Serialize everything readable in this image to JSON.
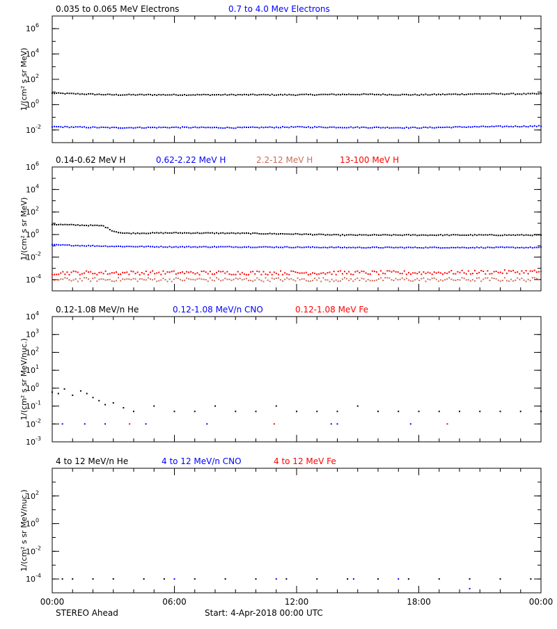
{
  "colors": {
    "black": "#000000",
    "blue": "#0000ff",
    "salmon": "#c86e5a",
    "red": "#ff0000"
  },
  "footer": {
    "left_label": "STEREO Ahead",
    "start_label": "Start:  4-Apr-2018 00:00 UTC"
  },
  "x_ticks": [
    "00:00",
    "06:00",
    "12:00",
    "18:00",
    "00:00"
  ],
  "chart_data": [
    {
      "type": "scatter",
      "scale": "log",
      "ylabel": "1/(cm² s sr MeV)",
      "ylim_log10": [
        -3,
        7
      ],
      "y_ticks": [
        {
          "exp": -2,
          "label": "10",
          "sup": "-2"
        },
        {
          "exp": 0,
          "label": "10",
          "sup": "0"
        },
        {
          "exp": 2,
          "label": "10",
          "sup": "2"
        },
        {
          "exp": 4,
          "label": "10",
          "sup": "4"
        },
        {
          "exp": 6,
          "label": "10",
          "sup": "6"
        }
      ],
      "legend": [
        "0.035 to 0.065 MeV Electrons",
        "0.7 to 4.0 Mev Electrons"
      ],
      "series": [
        {
          "name": "0.035 to 0.065 MeV Electrons",
          "color": "black",
          "mode": "band",
          "points": [
            [
              0,
              8
            ],
            [
              3,
              6
            ],
            [
              6,
              6
            ],
            [
              9,
              6
            ],
            [
              12,
              6
            ],
            [
              15,
              6.5
            ],
            [
              18,
              6
            ],
            [
              21,
              7
            ],
            [
              24,
              7
            ]
          ]
        },
        {
          "name": "0.7 to 4.0 Mev Electrons",
          "color": "blue",
          "mode": "band",
          "points": [
            [
              0,
              0.018
            ],
            [
              3,
              0.015
            ],
            [
              6,
              0.016
            ],
            [
              9,
              0.015
            ],
            [
              12,
              0.017
            ],
            [
              15,
              0.016
            ],
            [
              18,
              0.015
            ],
            [
              21,
              0.018
            ],
            [
              24,
              0.02
            ]
          ]
        }
      ]
    },
    {
      "type": "scatter",
      "scale": "log",
      "ylabel": "1/(cm² s sr MeV)",
      "ylim_log10": [
        -5,
        6
      ],
      "y_ticks": [
        {
          "exp": -4,
          "label": "10",
          "sup": "-4"
        },
        {
          "exp": -2,
          "label": "10",
          "sup": "-2"
        },
        {
          "exp": 0,
          "label": "10",
          "sup": "0"
        },
        {
          "exp": 2,
          "label": "10",
          "sup": "2"
        },
        {
          "exp": 4,
          "label": "10",
          "sup": "4"
        },
        {
          "exp": 6,
          "label": "10",
          "sup": "6"
        }
      ],
      "legend": [
        "0.14-0.62 MeV H",
        "0.62-2.22 MeV H",
        "2.2-12 MeV H",
        "13-100 MeV H"
      ],
      "series": [
        {
          "name": "0.14-0.62 MeV H",
          "color": "black",
          "mode": "band",
          "points": [
            [
              0,
              8
            ],
            [
              2.5,
              6
            ],
            [
              3,
              2
            ],
            [
              3.5,
              1.3
            ],
            [
              6,
              1.4
            ],
            [
              9,
              1.3
            ],
            [
              12,
              1.1
            ],
            [
              14,
              0.9
            ],
            [
              18,
              0.9
            ],
            [
              24,
              0.9
            ]
          ]
        },
        {
          "name": "0.62-2.22 MeV H",
          "color": "blue",
          "mode": "band",
          "points": [
            [
              0,
              0.12
            ],
            [
              3,
              0.09
            ],
            [
              6,
              0.08
            ],
            [
              9,
              0.08
            ],
            [
              12,
              0.075
            ],
            [
              15,
              0.07
            ],
            [
              18,
              0.07
            ],
            [
              24,
              0.07
            ]
          ]
        },
        {
          "name": "2.2-12 MeV H",
          "color": "salmon",
          "mode": "scatter",
          "points": [
            [
              0,
              0.0001
            ],
            [
              6,
              0.0001
            ],
            [
              12,
              0.0001
            ],
            [
              18,
              0.0001
            ],
            [
              24,
              0.0001
            ]
          ]
        },
        {
          "name": "13-100 MeV H",
          "color": "red",
          "mode": "scatter",
          "points": [
            [
              0,
              0.0004
            ],
            [
              6,
              0.0004
            ],
            [
              12,
              0.0004
            ],
            [
              18,
              0.0004
            ],
            [
              24,
              0.0005
            ]
          ]
        }
      ]
    },
    {
      "type": "scatter",
      "scale": "log",
      "ylabel": "1/(cm² s sr MeV/nuc.)",
      "ylim_log10": [
        -3,
        4
      ],
      "y_ticks": [
        {
          "exp": -3,
          "label": "10",
          "sup": "-3"
        },
        {
          "exp": -2,
          "label": "10",
          "sup": "-2"
        },
        {
          "exp": -1,
          "label": "10",
          "sup": "-1"
        },
        {
          "exp": 0,
          "label": "10",
          "sup": "0"
        },
        {
          "exp": 1,
          "label": "10",
          "sup": "1"
        },
        {
          "exp": 2,
          "label": "10",
          "sup": "2"
        },
        {
          "exp": 3,
          "label": "10",
          "sup": "3"
        },
        {
          "exp": 4,
          "label": "10",
          "sup": "4"
        }
      ],
      "legend": [
        "0.12-1.08 MeV/n He",
        "0.12-1.08 MeV/n CNO",
        "0.12-1.08 MeV Fe"
      ],
      "series": [
        {
          "name": "0.12-1.08 MeV/n He",
          "color": "black",
          "mode": "sparse",
          "points": [
            [
              0,
              0.6
            ],
            [
              0.3,
              0.5
            ],
            [
              0.6,
              0.9
            ],
            [
              1.0,
              0.4
            ],
            [
              1.4,
              0.7
            ],
            [
              1.7,
              0.5
            ],
            [
              2.0,
              0.3
            ],
            [
              2.3,
              0.2
            ],
            [
              2.6,
              0.12
            ],
            [
              3.0,
              0.15
            ],
            [
              3.5,
              0.08
            ],
            [
              4.0,
              0.05
            ],
            [
              5.0,
              0.1
            ],
            [
              6.0,
              0.05
            ],
            [
              7.0,
              0.05
            ],
            [
              8.0,
              0.1
            ],
            [
              9.0,
              0.05
            ],
            [
              10.0,
              0.05
            ],
            [
              11.0,
              0.1
            ],
            [
              12.0,
              0.05
            ],
            [
              13.0,
              0.05
            ],
            [
              14.0,
              0.05
            ],
            [
              15.0,
              0.1
            ],
            [
              16.0,
              0.05
            ],
            [
              17.0,
              0.05
            ],
            [
              18.0,
              0.05
            ],
            [
              19.0,
              0.05
            ],
            [
              20.0,
              0.05
            ],
            [
              21.0,
              0.05
            ],
            [
              22.0,
              0.05
            ],
            [
              23.0,
              0.05
            ],
            [
              24.0,
              0.05
            ]
          ]
        },
        {
          "name": "0.12-1.08 MeV/n CNO",
          "color": "blue",
          "mode": "sparse",
          "points": [
            [
              0.5,
              0.01
            ],
            [
              1.6,
              0.01
            ],
            [
              2.6,
              0.01
            ],
            [
              4.6,
              0.01
            ],
            [
              7.6,
              0.01
            ],
            [
              13.7,
              0.01
            ],
            [
              14.0,
              0.01
            ],
            [
              17.6,
              0.01
            ]
          ]
        },
        {
          "name": "0.12-1.08 MeV Fe",
          "color": "red",
          "mode": "sparse",
          "points": [
            [
              3.8,
              0.01
            ],
            [
              10.9,
              0.01
            ],
            [
              19.4,
              0.01
            ]
          ]
        }
      ]
    },
    {
      "type": "scatter",
      "scale": "log",
      "ylabel": "1/(cm² s sr MeV/nuc.)",
      "ylim_log10": [
        -5,
        4
      ],
      "y_ticks": [
        {
          "exp": -4,
          "label": "10",
          "sup": "-4"
        },
        {
          "exp": -2,
          "label": "10",
          "sup": "-2"
        },
        {
          "exp": 0,
          "label": "10",
          "sup": "0"
        },
        {
          "exp": 2,
          "label": "10",
          "sup": "2"
        }
      ],
      "legend": [
        "4 to 12 MeV/n He",
        "4 to 12 MeV/n CNO",
        "4 to 12 MeV Fe"
      ],
      "series": [
        {
          "name": "4 to 12 MeV/n He",
          "color": "black",
          "mode": "sparse",
          "points": [
            [
              0.5,
              0.0001
            ],
            [
              1.0,
              0.0001
            ],
            [
              2.0,
              0.0001
            ],
            [
              3.0,
              0.0001
            ],
            [
              4.5,
              0.0001
            ],
            [
              5.5,
              0.0001
            ],
            [
              7.0,
              0.0001
            ],
            [
              8.5,
              0.0001
            ],
            [
              10.0,
              0.0001
            ],
            [
              11.5,
              0.0001
            ],
            [
              13.0,
              0.0001
            ],
            [
              14.5,
              0.0001
            ],
            [
              16.0,
              0.0001
            ],
            [
              17.5,
              0.0001
            ],
            [
              19.0,
              0.0001
            ],
            [
              20.5,
              0.0001
            ],
            [
              22.0,
              0.0001
            ],
            [
              23.5,
              0.0001
            ]
          ]
        },
        {
          "name": "4 to 12 MeV/n CNO",
          "color": "blue",
          "mode": "sparse",
          "points": [
            [
              6.0,
              0.0001
            ],
            [
              11.0,
              0.0001
            ],
            [
              14.8,
              0.0001
            ],
            [
              17.0,
              0.0001
            ],
            [
              20.5,
              2e-05
            ]
          ]
        },
        {
          "name": "4 to 12 MeV Fe",
          "color": "red",
          "mode": "sparse",
          "points": []
        }
      ]
    }
  ]
}
